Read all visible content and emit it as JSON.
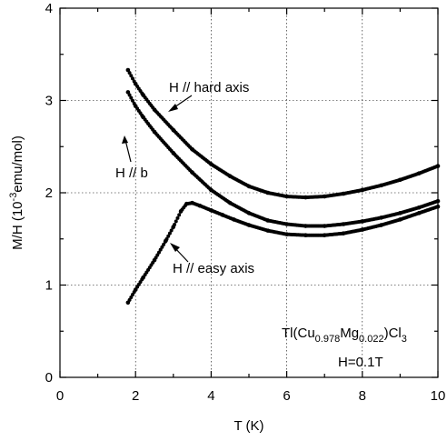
{
  "chart_data": {
    "type": "scatter",
    "title": "",
    "xlabel": "T (K)",
    "ylabel": {
      "main": "M/H (10",
      "sup": "-3",
      "rest": "emu/mol)"
    },
    "xlim": [
      0,
      10
    ],
    "ylim": [
      0,
      4
    ],
    "xticks": [
      "0",
      "2",
      "4",
      "6",
      "8",
      "10"
    ],
    "yticks": [
      "0",
      "1",
      "2",
      "3",
      "4"
    ],
    "grid": true,
    "series": [
      {
        "name": "H // hard axis",
        "x": [
          1.8,
          2.0,
          2.2,
          2.5,
          3.0,
          3.5,
          4.0,
          4.5,
          5.0,
          5.5,
          6.0,
          6.5,
          7.0,
          7.5,
          8.0,
          8.5,
          9.0,
          9.5,
          10.0
        ],
        "y": [
          3.33,
          3.18,
          3.06,
          2.9,
          2.68,
          2.47,
          2.31,
          2.18,
          2.07,
          2.0,
          1.96,
          1.95,
          1.96,
          1.99,
          2.03,
          2.08,
          2.14,
          2.21,
          2.29
        ]
      },
      {
        "name": "H // b",
        "x": [
          1.8,
          2.0,
          2.2,
          2.5,
          3.0,
          3.5,
          4.0,
          4.5,
          5.0,
          5.5,
          6.0,
          6.5,
          7.0,
          7.5,
          8.0,
          8.5,
          9.0,
          9.5,
          10.0
        ],
        "y": [
          3.09,
          2.94,
          2.82,
          2.66,
          2.43,
          2.22,
          2.03,
          1.89,
          1.78,
          1.7,
          1.66,
          1.64,
          1.64,
          1.66,
          1.69,
          1.73,
          1.78,
          1.84,
          1.91
        ]
      },
      {
        "name": "H // easy axis",
        "x": [
          1.8,
          2.0,
          2.2,
          2.5,
          2.8,
          3.0,
          3.2,
          3.35,
          3.5,
          3.7,
          4.0,
          4.3,
          4.6,
          5.0,
          5.5,
          6.0,
          6.5,
          7.0,
          7.5,
          8.0,
          8.5,
          9.0,
          9.5,
          10.0
        ],
        "y": [
          0.81,
          0.95,
          1.08,
          1.27,
          1.48,
          1.63,
          1.8,
          1.88,
          1.89,
          1.86,
          1.81,
          1.76,
          1.71,
          1.65,
          1.59,
          1.55,
          1.54,
          1.54,
          1.56,
          1.6,
          1.65,
          1.71,
          1.78,
          1.85
        ]
      }
    ],
    "annotations": {
      "hard_label": "H // hard axis",
      "b_label": "H // b",
      "easy_label": "H // easy axis",
      "compound": {
        "t1": "Tl(Cu",
        "s1": "0.978",
        "t2": "Mg",
        "s2": "0.022",
        "t3": ")Cl",
        "s3": "3"
      },
      "field": "H=0.1T"
    }
  }
}
